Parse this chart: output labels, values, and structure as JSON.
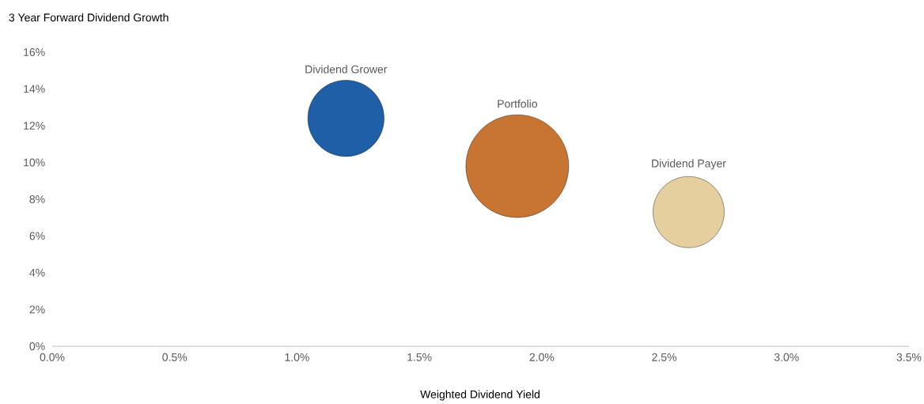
{
  "chart_data": {
    "type": "bubble",
    "xlabel": "Weighted Dividend Yield",
    "ylabel": "3 Year Forward Dividend Growth",
    "xlim": [
      0,
      3.5
    ],
    "ylim": [
      0,
      16
    ],
    "xticks": [
      {
        "value": 0,
        "label": "0.0%"
      },
      {
        "value": 0.5,
        "label": "0.5%"
      },
      {
        "value": 1,
        "label": "1.0%"
      },
      {
        "value": 1.5,
        "label": "1.5%"
      },
      {
        "value": 2,
        "label": "2.0%"
      },
      {
        "value": 2.5,
        "label": "2.5%"
      },
      {
        "value": 3,
        "label": "3.0%"
      },
      {
        "value": 3.5,
        "label": "3.5%"
      }
    ],
    "yticks": [
      {
        "value": 0,
        "label": "0%"
      },
      {
        "value": 2,
        "label": "2%"
      },
      {
        "value": 4,
        "label": "4%"
      },
      {
        "value": 6,
        "label": "6%"
      },
      {
        "value": 8,
        "label": "8%"
      },
      {
        "value": 10,
        "label": "10%"
      },
      {
        "value": 12,
        "label": "12%"
      },
      {
        "value": 14,
        "label": "14%"
      },
      {
        "value": 16,
        "label": "16%"
      }
    ],
    "marker": "circle",
    "series": [
      {
        "name": "Dividend Grower",
        "color": "#1f5fa8",
        "x": [
          1.2
        ],
        "values": [
          12.4
        ],
        "sizes": [
          0.55
        ]
      },
      {
        "name": "Portfolio",
        "color": "#c87533",
        "x": [
          1.9
        ],
        "values": [
          9.8
        ],
        "sizes": [
          1
        ]
      },
      {
        "name": "Dividend Payer",
        "color": "#e6cf9f",
        "x": [
          2.6
        ],
        "values": [
          7.3
        ],
        "sizes": [
          0.48
        ]
      }
    ]
  }
}
